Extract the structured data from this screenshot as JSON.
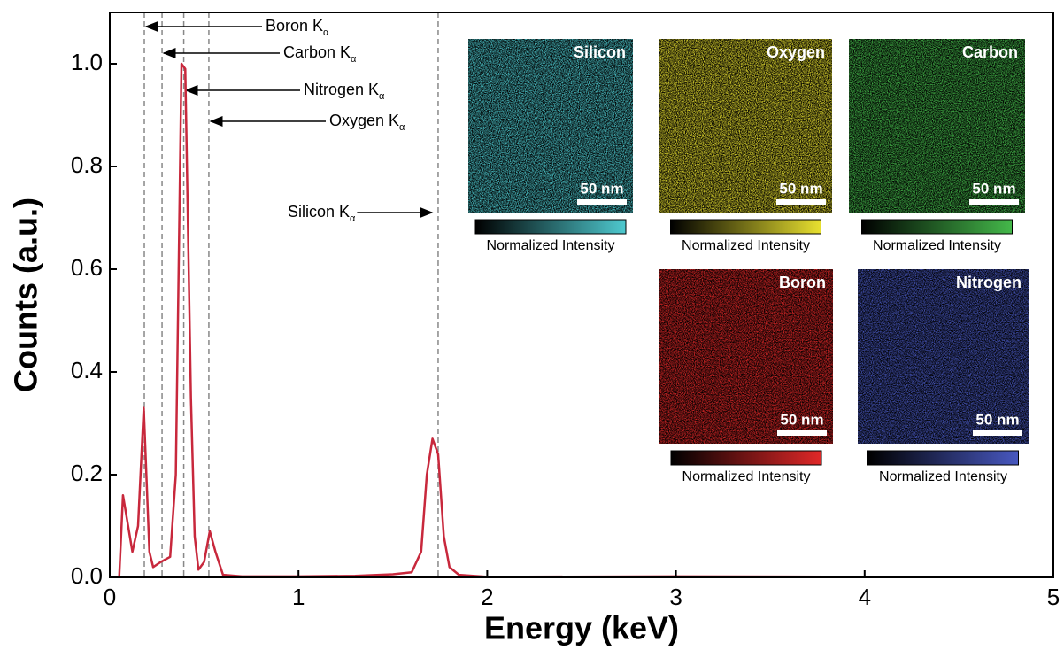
{
  "chart_data": {
    "type": "line",
    "x_label": "Energy (keV)",
    "y_label": "Counts (a.u.)",
    "xlim": [
      0,
      5
    ],
    "ylim": [
      0,
      1.1
    ],
    "xticks": [
      0,
      1,
      2,
      3,
      4,
      5
    ],
    "yticks": [
      {
        "value": 0,
        "label": "0.0"
      },
      0.2,
      0.4,
      0.6,
      0.8,
      {
        "value": 1,
        "label": "1.0"
      }
    ],
    "series": [
      {
        "color": "#c8283c",
        "x": [
          0.05,
          0.07,
          0.12,
          0.15,
          0.18,
          0.21,
          0.23,
          0.27,
          0.32,
          0.35,
          0.38,
          0.4,
          0.43,
          0.45,
          0.47,
          0.5,
          0.53,
          0.56,
          0.6,
          0.7,
          1.0,
          1.3,
          1.5,
          1.6,
          1.65,
          1.68,
          1.71,
          1.74,
          1.77,
          1.8,
          1.85,
          2.0,
          3.0,
          4.0,
          5.0
        ],
        "values": [
          0,
          0.16,
          0.05,
          0.1,
          0.33,
          0.05,
          0.02,
          0.03,
          0.04,
          0.2,
          1.0,
          0.99,
          0.35,
          0.08,
          0.015,
          0.03,
          0.09,
          0.05,
          0.005,
          0.002,
          0.002,
          0.003,
          0.006,
          0.01,
          0.05,
          0.2,
          0.27,
          0.24,
          0.08,
          0.02,
          0.005,
          0.001,
          0.002,
          0.001,
          0.001
        ]
      }
    ],
    "reference_lines": [
      0.183,
      0.277,
      0.392,
      0.525,
      1.74
    ],
    "annotations": [
      {
        "text": "Boron K",
        "subscript": "α"
      },
      {
        "text": "Carbon K",
        "subscript": "α"
      },
      {
        "text": "Nitrogen K",
        "subscript": "α"
      },
      {
        "text": "Oxygen K",
        "subscript": "α"
      },
      {
        "text": "Silicon K",
        "subscript": "α"
      }
    ],
    "insets": [
      {
        "name": "Silicon",
        "color": "#4ec9cf",
        "scale_bar": "50 nm",
        "colorbar_label": "Normalized Intensity"
      },
      {
        "name": "Oxygen",
        "color": "#e8e030",
        "scale_bar": "50 nm",
        "colorbar_label": "Normalized Intensity"
      },
      {
        "name": "Carbon",
        "color": "#44b84a",
        "scale_bar": "50 nm",
        "colorbar_label": "Normalized Intensity"
      },
      {
        "name": "Boron",
        "color": "#e02828",
        "scale_bar": "50 nm",
        "colorbar_label": "Normalized Intensity"
      },
      {
        "name": "Nitrogen",
        "color": "#4858c0",
        "scale_bar": "50 nm",
        "colorbar_label": "Normalized Intensity"
      }
    ]
  }
}
